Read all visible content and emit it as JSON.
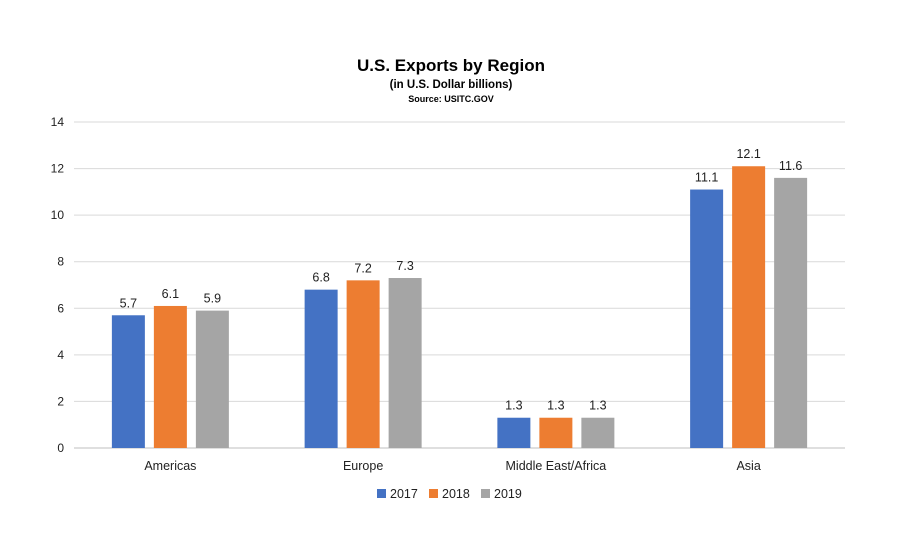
{
  "chart_data": {
    "type": "bar",
    "title": "U.S. Exports by Region",
    "subtitle": "(in U.S. Dollar billions)",
    "source": "Source: USITC.GOV",
    "categories": [
      "Americas",
      "Europe",
      "Middle East/Africa",
      "Asia"
    ],
    "series": [
      {
        "name": "2017",
        "color": "#4472C4",
        "values": [
          5.7,
          6.8,
          1.3,
          11.1
        ]
      },
      {
        "name": "2018",
        "color": "#ED7D31",
        "values": [
          6.1,
          7.2,
          1.3,
          12.1
        ]
      },
      {
        "name": "2019",
        "color": "#A5A5A5",
        "values": [
          5.9,
          7.3,
          1.3,
          11.6
        ]
      }
    ],
    "ylim": [
      0,
      14
    ],
    "yticks": [
      0,
      2,
      4,
      6,
      8,
      10,
      12,
      14
    ],
    "xlabel": "",
    "ylabel": "",
    "grid": true,
    "legend_position": "bottom"
  }
}
